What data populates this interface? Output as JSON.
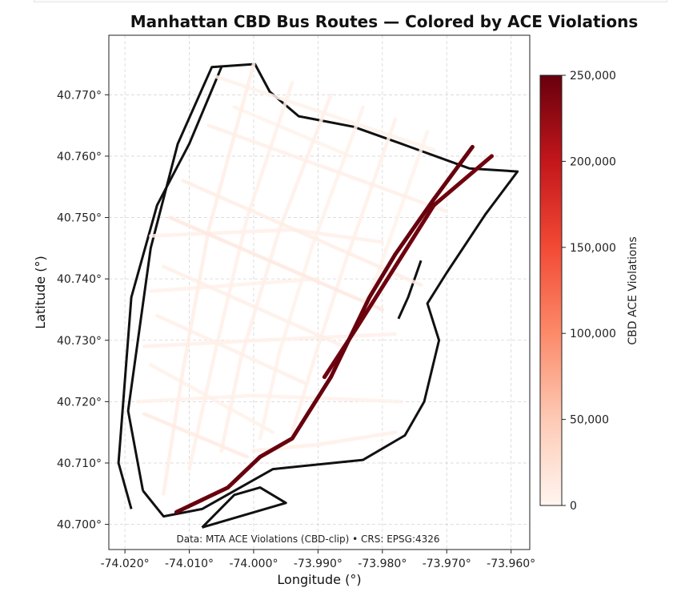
{
  "chart_data": {
    "type": "map",
    "title": "Manhattan CBD Bus Routes — Colored by ACE Violations",
    "xlabel": "Longitude (°)",
    "ylabel": "Latitude (°)",
    "xlim": [
      -74.0225,
      -73.9571
    ],
    "ylim": [
      40.6959,
      40.7797
    ],
    "x_ticks": [
      -74.02,
      -74.01,
      -74.0,
      -73.99,
      -73.98,
      -73.97,
      -73.96
    ],
    "x_tick_labels": [
      "-74.020°",
      "-74.010°",
      "-74.000°",
      "-73.990°",
      "-73.980°",
      "-73.970°",
      "-73.960°"
    ],
    "y_ticks": [
      40.7,
      40.71,
      40.72,
      40.73,
      40.74,
      40.75,
      40.76,
      40.77
    ],
    "y_tick_labels": [
      "40.700°",
      "40.710°",
      "40.720°",
      "40.730°",
      "40.740°",
      "40.750°",
      "40.760°",
      "40.770°"
    ],
    "grid": true,
    "colorbar": {
      "label": "CBD ACE Violations",
      "range": [
        0,
        250000
      ],
      "ticks": [
        0,
        50000,
        100000,
        150000,
        200000,
        250000
      ],
      "tick_labels": [
        "0",
        "50,000",
        "100,000",
        "150,000",
        "200,000",
        "250,000"
      ],
      "colormap": [
        "#fff5f0",
        "#fdcab5",
        "#fc8a6a",
        "#f24a35",
        "#c3161b",
        "#67000d"
      ]
    },
    "annotation": "Data: MTA ACE Violations (CBD-clip) • CRS: EPSG:4326",
    "boundaries": [
      [
        [
          -74.0172,
          40.7055
        ],
        [
          -74.0195,
          40.7185
        ],
        [
          -74.016,
          40.745
        ],
        [
          -74.0118,
          40.762
        ],
        [
          -74.0065,
          40.7745
        ],
        [
          -73.9998,
          40.775
        ],
        [
          -73.9975,
          40.7705
        ],
        [
          -73.993,
          40.7665
        ],
        [
          -73.9845,
          40.7648
        ],
        [
          -73.977,
          40.762
        ],
        [
          -73.9665,
          40.758
        ],
        [
          -73.959,
          40.7575
        ],
        [
          -73.964,
          40.7505
        ],
        [
          -73.97,
          40.741
        ],
        [
          -73.973,
          40.736
        ],
        [
          -73.9712,
          40.73
        ],
        [
          -73.9735,
          40.72
        ],
        [
          -73.9765,
          40.7145
        ],
        [
          -73.983,
          40.7105
        ],
        [
          -73.997,
          40.709
        ],
        [
          -74.008,
          40.7025
        ],
        [
          -74.014,
          40.7013
        ],
        [
          -74.0172,
          40.7055
        ]
      ],
      [
        [
          -74.019,
          40.7025
        ],
        [
          -74.021,
          40.71
        ],
        [
          -74.019,
          40.737
        ],
        [
          -74.015,
          40.752
        ],
        [
          -74.01,
          40.762
        ],
        [
          -74.005,
          40.7745
        ]
      ],
      [
        [
          -74.008,
          40.6995
        ],
        [
          -74.003,
          40.7048
        ],
        [
          -73.999,
          40.706
        ],
        [
          -73.995,
          40.7035
        ],
        [
          -74.008,
          40.6995
        ]
      ],
      [
        [
          -73.974,
          40.743
        ],
        [
          -73.976,
          40.737
        ],
        [
          -73.9775,
          40.7335
        ]
      ]
    ],
    "routes": [
      {
        "path": [
          [
            -74.012,
            40.702
          ],
          [
            -74.004,
            40.706
          ],
          [
            -73.999,
            40.711
          ],
          [
            -73.994,
            40.714
          ],
          [
            -73.988,
            40.724
          ],
          [
            -73.982,
            40.737
          ],
          [
            -73.978,
            40.744
          ],
          [
            -73.972,
            40.753
          ],
          [
            -73.966,
            40.7615
          ]
        ],
        "value": 250000
      },
      {
        "path": [
          [
            -73.989,
            40.724
          ],
          [
            -73.984,
            40.732
          ],
          [
            -73.978,
            40.742
          ],
          [
            -73.972,
            40.752
          ],
          [
            -73.963,
            40.76
          ]
        ],
        "value": 245000
      },
      {
        "path": [
          [
            -74.007,
            40.765
          ],
          [
            -73.97,
            40.751
          ]
        ],
        "value": 8000
      },
      {
        "path": [
          [
            -74.011,
            40.756
          ],
          [
            -73.974,
            40.739
          ]
        ],
        "value": 9000
      },
      {
        "path": [
          [
            -74.013,
            40.75
          ],
          [
            -73.98,
            40.735
          ]
        ],
        "value": 14000
      },
      {
        "path": [
          [
            -74.014,
            40.742
          ],
          [
            -73.986,
            40.729
          ]
        ],
        "value": 7000
      },
      {
        "path": [
          [
            -74.015,
            40.734
          ],
          [
            -73.992,
            40.723
          ]
        ],
        "value": 6000
      },
      {
        "path": [
          [
            -74.016,
            40.726
          ],
          [
            -73.997,
            40.715
          ]
        ],
        "value": 5000
      },
      {
        "path": [
          [
            -74.017,
            40.718
          ],
          [
            -74.001,
            40.711
          ]
        ],
        "value": 12000
      },
      {
        "path": [
          [
            -74.006,
            40.773
          ],
          [
            -73.972,
            40.761
          ]
        ],
        "value": 5000
      },
      {
        "path": [
          [
            -74.003,
            40.768
          ],
          [
            -73.985,
            40.76
          ]
        ],
        "value": 4000
      },
      {
        "path": [
          [
            -74.0,
            40.775
          ],
          [
            -74.007,
            40.748
          ],
          [
            -74.011,
            40.725
          ],
          [
            -74.014,
            40.705
          ]
        ],
        "value": 9000
      },
      {
        "path": [
          [
            -73.994,
            40.772
          ],
          [
            -74.001,
            40.75
          ],
          [
            -74.006,
            40.728
          ],
          [
            -74.01,
            40.709
          ]
        ],
        "value": 6000
      },
      {
        "path": [
          [
            -73.988,
            40.77
          ],
          [
            -73.996,
            40.748
          ],
          [
            -74.002,
            40.727
          ],
          [
            -74.005,
            40.712
          ]
        ],
        "value": 7000
      },
      {
        "path": [
          [
            -73.983,
            40.768
          ],
          [
            -73.991,
            40.745
          ],
          [
            -73.996,
            40.728
          ],
          [
            -73.999,
            40.714
          ]
        ],
        "value": 5000
      },
      {
        "path": [
          [
            -73.978,
            40.766
          ],
          [
            -73.986,
            40.742
          ],
          [
            -73.99,
            40.729
          ],
          [
            -73.994,
            40.715
          ]
        ],
        "value": 6000
      },
      {
        "path": [
          [
            -73.973,
            40.764
          ],
          [
            -73.981,
            40.74
          ],
          [
            -73.985,
            40.73
          ]
        ],
        "value": 4000
      },
      {
        "path": [
          [
            -74.016,
            40.747
          ],
          [
            -73.994,
            40.748
          ],
          [
            -73.98,
            40.746
          ]
        ],
        "value": 6000
      },
      {
        "path": [
          [
            -74.016,
            40.738
          ],
          [
            -73.99,
            40.74
          ]
        ],
        "value": 5000
      },
      {
        "path": [
          [
            -74.017,
            40.729
          ],
          [
            -73.999,
            40.73
          ],
          [
            -73.978,
            40.731
          ]
        ],
        "value": 6000
      },
      {
        "path": [
          [
            -74.018,
            40.72
          ],
          [
            -74.0,
            40.721
          ],
          [
            -73.977,
            40.72
          ]
        ],
        "value": 5000
      },
      {
        "path": [
          [
            -74.0,
            40.712
          ],
          [
            -73.99,
            40.713
          ],
          [
            -73.978,
            40.715
          ]
        ],
        "value": 8000
      }
    ]
  }
}
